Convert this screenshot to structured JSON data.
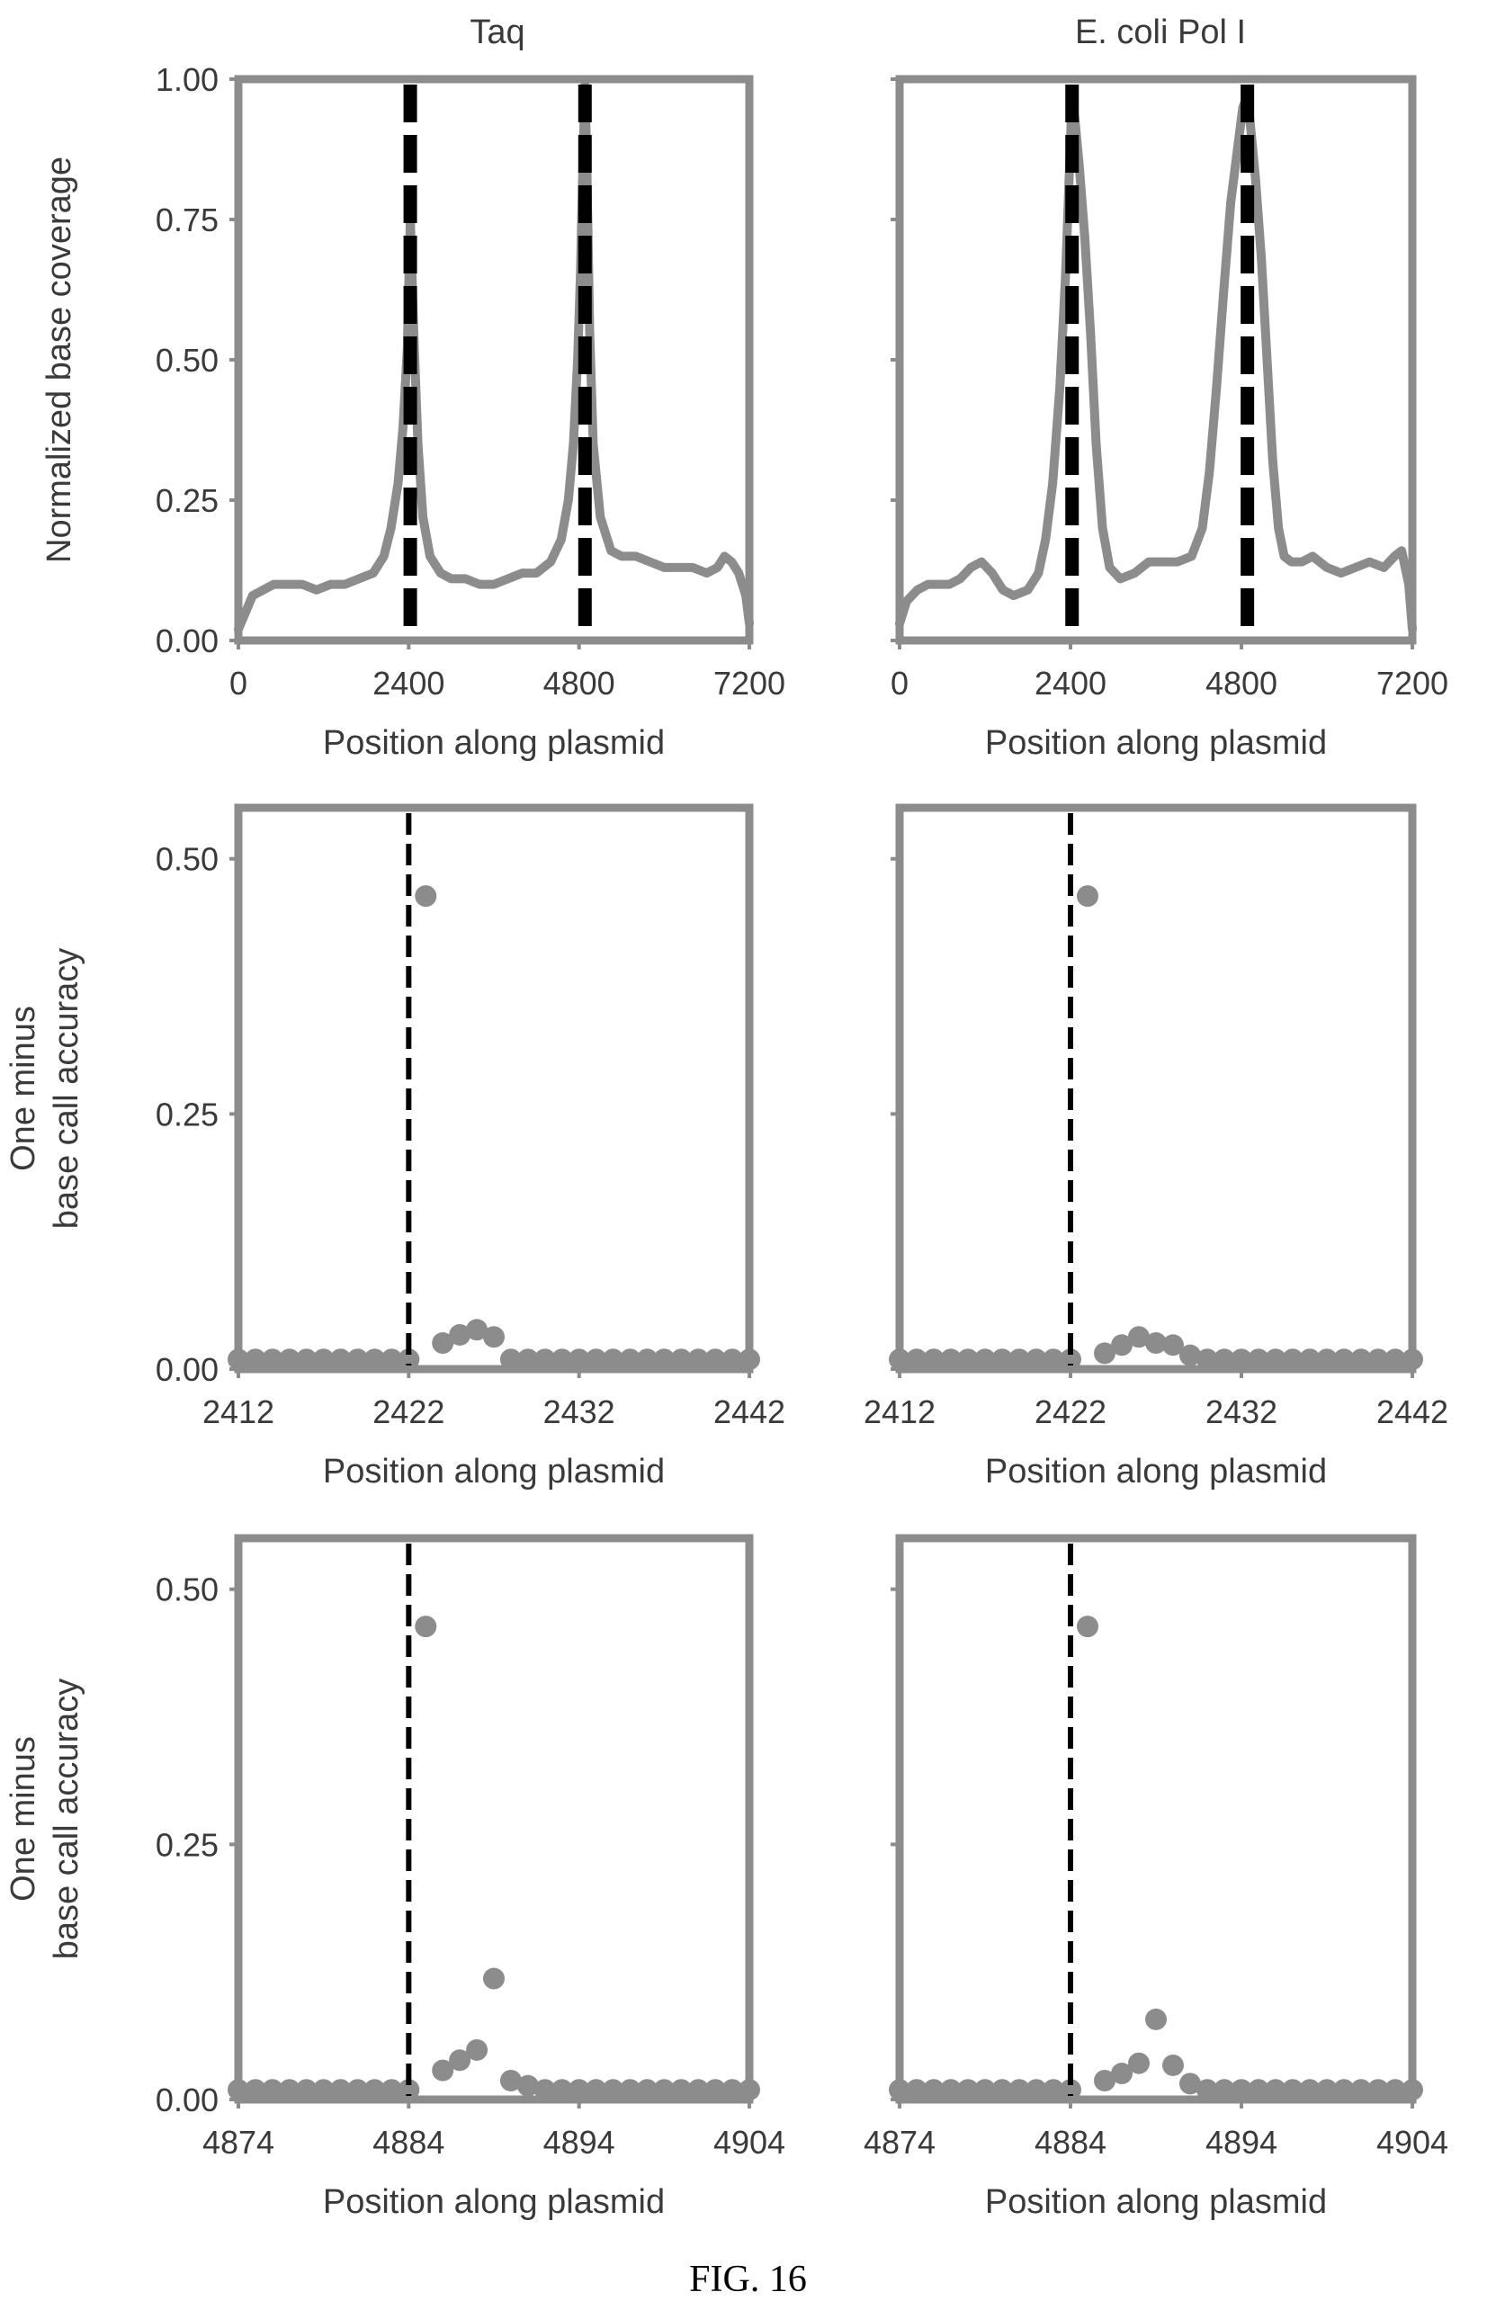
{
  "figure_caption": "FIG. 16",
  "column_titles": [
    "Taq",
    "E. coli Pol I"
  ],
  "colors": {
    "trace": "#8c8c8c",
    "frame": "#8c8c8c",
    "marker": "#000000"
  },
  "chart_data": [
    {
      "type": "line",
      "title": "Taq",
      "xlabel": "Position along plasmid",
      "ylabel": "Normalized base coverage",
      "xlim": [
        0,
        7200
      ],
      "ylim": [
        0,
        1
      ],
      "xticks": [
        0,
        2400,
        4800,
        7200
      ],
      "xtick_labels": [
        "0",
        "2400",
        "4800",
        "7200"
      ],
      "yticks": [
        0,
        0.25,
        0.5,
        0.75,
        1
      ],
      "ytick_labels": [
        "0.00",
        "0.25",
        "0.50",
        "0.75",
        "1.00"
      ],
      "vlines": [
        2422,
        4884
      ],
      "series": [
        {
          "x": [
            0,
            100,
            200,
            350,
            500,
            700,
            900,
            1100,
            1300,
            1500,
            1700,
            1900,
            2050,
            2150,
            2250,
            2320,
            2380,
            2422,
            2470,
            2530,
            2600,
            2700,
            2850,
            3000,
            3200,
            3400,
            3600,
            3800,
            4000,
            4200,
            4400,
            4550,
            4650,
            4720,
            4780,
            4820,
            4850,
            4884,
            4910,
            4950,
            5000,
            5100,
            5250,
            5400,
            5600,
            5800,
            6000,
            6200,
            6400,
            6600,
            6750,
            6850,
            6950,
            7050,
            7150,
            7200
          ],
          "y": [
            0.02,
            0.05,
            0.08,
            0.09,
            0.1,
            0.1,
            0.1,
            0.09,
            0.1,
            0.1,
            0.11,
            0.12,
            0.15,
            0.2,
            0.28,
            0.38,
            0.52,
            0.75,
            0.55,
            0.35,
            0.22,
            0.15,
            0.12,
            0.11,
            0.11,
            0.1,
            0.1,
            0.11,
            0.12,
            0.12,
            0.14,
            0.18,
            0.25,
            0.35,
            0.5,
            0.65,
            0.82,
            0.99,
            0.85,
            0.55,
            0.35,
            0.22,
            0.16,
            0.15,
            0.15,
            0.14,
            0.13,
            0.13,
            0.13,
            0.12,
            0.13,
            0.15,
            0.14,
            0.12,
            0.08,
            0.03
          ]
        }
      ]
    },
    {
      "type": "line",
      "title": "E. coli Pol I",
      "xlabel": "Position along plasmid",
      "ylabel": "",
      "xlim": [
        0,
        7200
      ],
      "ylim": [
        0,
        1
      ],
      "xticks": [
        0,
        2400,
        4800,
        7200
      ],
      "xtick_labels": [
        "0",
        "2400",
        "4800",
        "7200"
      ],
      "yticks": [
        0,
        0.25,
        0.5,
        0.75,
        1
      ],
      "ytick_labels": [],
      "vlines": [
        2422,
        4884
      ],
      "series": [
        {
          "x": [
            0,
            100,
            250,
            400,
            550,
            700,
            850,
            1000,
            1150,
            1300,
            1450,
            1600,
            1800,
            1950,
            2050,
            2150,
            2250,
            2330,
            2380,
            2422,
            2460,
            2520,
            2600,
            2680,
            2760,
            2850,
            2950,
            3100,
            3300,
            3500,
            3700,
            3900,
            4100,
            4250,
            4350,
            4450,
            4550,
            4650,
            4750,
            4820,
            4884,
            4940,
            5000,
            5080,
            5160,
            5240,
            5320,
            5400,
            5500,
            5650,
            5800,
            6000,
            6200,
            6400,
            6600,
            6800,
            6950,
            7050,
            7150,
            7200
          ],
          "y": [
            0.03,
            0.07,
            0.09,
            0.1,
            0.1,
            0.1,
            0.11,
            0.13,
            0.14,
            0.12,
            0.09,
            0.08,
            0.09,
            0.12,
            0.18,
            0.28,
            0.45,
            0.65,
            0.82,
            0.97,
            0.93,
            0.85,
            0.72,
            0.55,
            0.35,
            0.2,
            0.13,
            0.11,
            0.12,
            0.14,
            0.14,
            0.14,
            0.15,
            0.2,
            0.3,
            0.45,
            0.62,
            0.78,
            0.88,
            0.95,
            0.97,
            0.9,
            0.82,
            0.68,
            0.5,
            0.32,
            0.2,
            0.15,
            0.14,
            0.14,
            0.15,
            0.13,
            0.12,
            0.13,
            0.14,
            0.13,
            0.15,
            0.16,
            0.1,
            0.02
          ]
        }
      ]
    },
    {
      "type": "scatter",
      "title": "",
      "xlabel": "Position along plasmid",
      "ylabel": "One minus base call accuracy",
      "ylabel_lines": [
        "One minus",
        "base call accuracy"
      ],
      "xlim": [
        2412,
        2442
      ],
      "ylim": [
        0,
        0.55
      ],
      "xticks": [
        2412,
        2422,
        2432,
        2442
      ],
      "xtick_labels": [
        "2412",
        "2422",
        "2432",
        "2442"
      ],
      "yticks": [
        0,
        0.25,
        0.5
      ],
      "ytick_labels": [
        "0.00",
        "0.25",
        "0.50"
      ],
      "vlines": [
        2422
      ],
      "series": [
        {
          "x": [
            2412,
            2413,
            2414,
            2415,
            2416,
            2417,
            2418,
            2419,
            2420,
            2421,
            2422,
            2423,
            2424,
            2425,
            2426,
            2427,
            2428,
            2429,
            2430,
            2431,
            2432,
            2433,
            2434,
            2435,
            2436,
            2437,
            2438,
            2439,
            2440,
            2441,
            2442
          ],
          "y": [
            0.006,
            0.006,
            0.006,
            0.006,
            0.006,
            0.006,
            0.006,
            0.006,
            0.006,
            0.006,
            0.006,
            0.46,
            0.022,
            0.03,
            0.035,
            0.028,
            0.006,
            0.006,
            0.006,
            0.006,
            0.006,
            0.006,
            0.006,
            0.006,
            0.006,
            0.006,
            0.006,
            0.006,
            0.006,
            0.006,
            0.006
          ]
        }
      ]
    },
    {
      "type": "scatter",
      "title": "",
      "xlabel": "Position along plasmid",
      "ylabel": "",
      "xlim": [
        2412,
        2442
      ],
      "ylim": [
        0,
        0.55
      ],
      "xticks": [
        2412,
        2422,
        2432,
        2442
      ],
      "xtick_labels": [
        "2412",
        "2422",
        "2432",
        "2442"
      ],
      "yticks": [
        0,
        0.25,
        0.5
      ],
      "ytick_labels": [],
      "vlines": [
        2422
      ],
      "series": [
        {
          "x": [
            2412,
            2413,
            2414,
            2415,
            2416,
            2417,
            2418,
            2419,
            2420,
            2421,
            2422,
            2423,
            2424,
            2425,
            2426,
            2427,
            2428,
            2429,
            2430,
            2431,
            2432,
            2433,
            2434,
            2435,
            2436,
            2437,
            2438,
            2439,
            2440,
            2441,
            2442
          ],
          "y": [
            0.006,
            0.006,
            0.006,
            0.006,
            0.006,
            0.006,
            0.006,
            0.006,
            0.006,
            0.006,
            0.006,
            0.46,
            0.012,
            0.02,
            0.028,
            0.022,
            0.02,
            0.01,
            0.006,
            0.006,
            0.006,
            0.006,
            0.006,
            0.006,
            0.006,
            0.006,
            0.006,
            0.006,
            0.006,
            0.006,
            0.006
          ]
        }
      ]
    },
    {
      "type": "scatter",
      "title": "",
      "xlabel": "Position along plasmid",
      "ylabel": "One minus base call accuracy",
      "ylabel_lines": [
        "One minus",
        "base call accuracy"
      ],
      "xlim": [
        4874,
        4904
      ],
      "ylim": [
        0,
        0.55
      ],
      "xticks": [
        4874,
        4884,
        4894,
        4904
      ],
      "xtick_labels": [
        "4874",
        "4884",
        "4894",
        "4904"
      ],
      "yticks": [
        0,
        0.25,
        0.5
      ],
      "ytick_labels": [
        "0.00",
        "0.25",
        "0.50"
      ],
      "vlines": [
        4884
      ],
      "series": [
        {
          "x": [
            4874,
            4875,
            4876,
            4877,
            4878,
            4879,
            4880,
            4881,
            4882,
            4883,
            4884,
            4885,
            4886,
            4887,
            4888,
            4889,
            4890,
            4891,
            4892,
            4893,
            4894,
            4895,
            4896,
            4897,
            4898,
            4899,
            4900,
            4901,
            4902,
            4903,
            4904
          ],
          "y": [
            0.006,
            0.006,
            0.006,
            0.006,
            0.006,
            0.006,
            0.006,
            0.006,
            0.006,
            0.006,
            0.006,
            0.46,
            0.025,
            0.035,
            0.045,
            0.115,
            0.015,
            0.01,
            0.006,
            0.006,
            0.006,
            0.006,
            0.006,
            0.006,
            0.006,
            0.006,
            0.006,
            0.006,
            0.006,
            0.006,
            0.006
          ]
        }
      ]
    },
    {
      "type": "scatter",
      "title": "",
      "xlabel": "Position along plasmid",
      "ylabel": "",
      "xlim": [
        4874,
        4904
      ],
      "ylim": [
        0,
        0.55
      ],
      "xticks": [
        4874,
        4884,
        4894,
        4904
      ],
      "xtick_labels": [
        "4874",
        "4884",
        "4894",
        "4904"
      ],
      "yticks": [
        0,
        0.25,
        0.5
      ],
      "ytick_labels": [],
      "vlines": [
        4884
      ],
      "series": [
        {
          "x": [
            4874,
            4875,
            4876,
            4877,
            4878,
            4879,
            4880,
            4881,
            4882,
            4883,
            4884,
            4885,
            4886,
            4887,
            4888,
            4889,
            4890,
            4891,
            4892,
            4893,
            4894,
            4895,
            4896,
            4897,
            4898,
            4899,
            4900,
            4901,
            4902,
            4903,
            4904
          ],
          "y": [
            0.006,
            0.006,
            0.006,
            0.006,
            0.006,
            0.006,
            0.006,
            0.006,
            0.006,
            0.006,
            0.006,
            0.46,
            0.015,
            0.022,
            0.032,
            0.075,
            0.03,
            0.012,
            0.006,
            0.006,
            0.006,
            0.006,
            0.006,
            0.006,
            0.006,
            0.006,
            0.006,
            0.006,
            0.006,
            0.006,
            0.006
          ]
        }
      ]
    }
  ]
}
